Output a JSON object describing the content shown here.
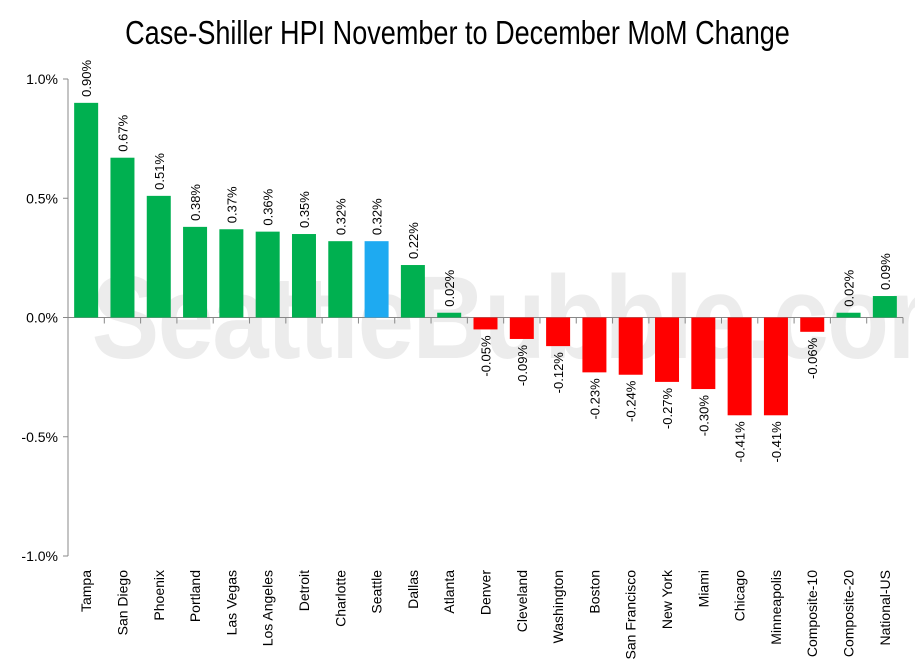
{
  "watermark": "SeattleBubble.com",
  "chart_data": {
    "type": "bar",
    "title": "Case-Shiller HPI November to December MoM Change",
    "xlabel": "",
    "ylabel": "",
    "ylim": [
      -1.0,
      1.0
    ],
    "yticks": [
      "1.0%",
      "0.5%",
      "0.0%",
      "-0.5%",
      "-1.0%"
    ],
    "ytick_values": [
      1.0,
      0.5,
      0.0,
      -0.5,
      -1.0
    ],
    "grid": false,
    "legend": "none",
    "colors": {
      "positive": "#00b050",
      "negative": "#ff0000",
      "highlight": "#1eaaf1"
    },
    "highlight": "Seattle",
    "categories": [
      "Tampa",
      "San Diego",
      "Phoenix",
      "Portland",
      "Las Vegas",
      "Los Angeles",
      "Detroit",
      "Charlotte",
      "Seattle",
      "Dallas",
      "Atlanta",
      "Denver",
      "Cleveland",
      "Washington",
      "Boston",
      "San Francisco",
      "New York",
      "Miami",
      "Chicago",
      "Minneapolis",
      "Composite-10",
      "Composite-20",
      "National-US"
    ],
    "values": [
      0.9,
      0.67,
      0.51,
      0.38,
      0.37,
      0.36,
      0.35,
      0.32,
      0.32,
      0.22,
      0.02,
      -0.05,
      -0.09,
      -0.12,
      -0.23,
      -0.24,
      -0.27,
      -0.3,
      -0.41,
      -0.41,
      -0.06,
      0.02,
      0.09
    ],
    "labels": [
      "0.90%",
      "0.67%",
      "0.51%",
      "0.38%",
      "0.37%",
      "0.36%",
      "0.35%",
      "0.32%",
      "0.32%",
      "0.22%",
      "0.02%",
      "-0.05%",
      "-0.09%",
      "-0.12%",
      "-0.23%",
      "-0.24%",
      "-0.27%",
      "-0.30%",
      "-0.41%",
      "-0.41%",
      "-0.06%",
      "0.02%",
      "0.09%"
    ]
  }
}
